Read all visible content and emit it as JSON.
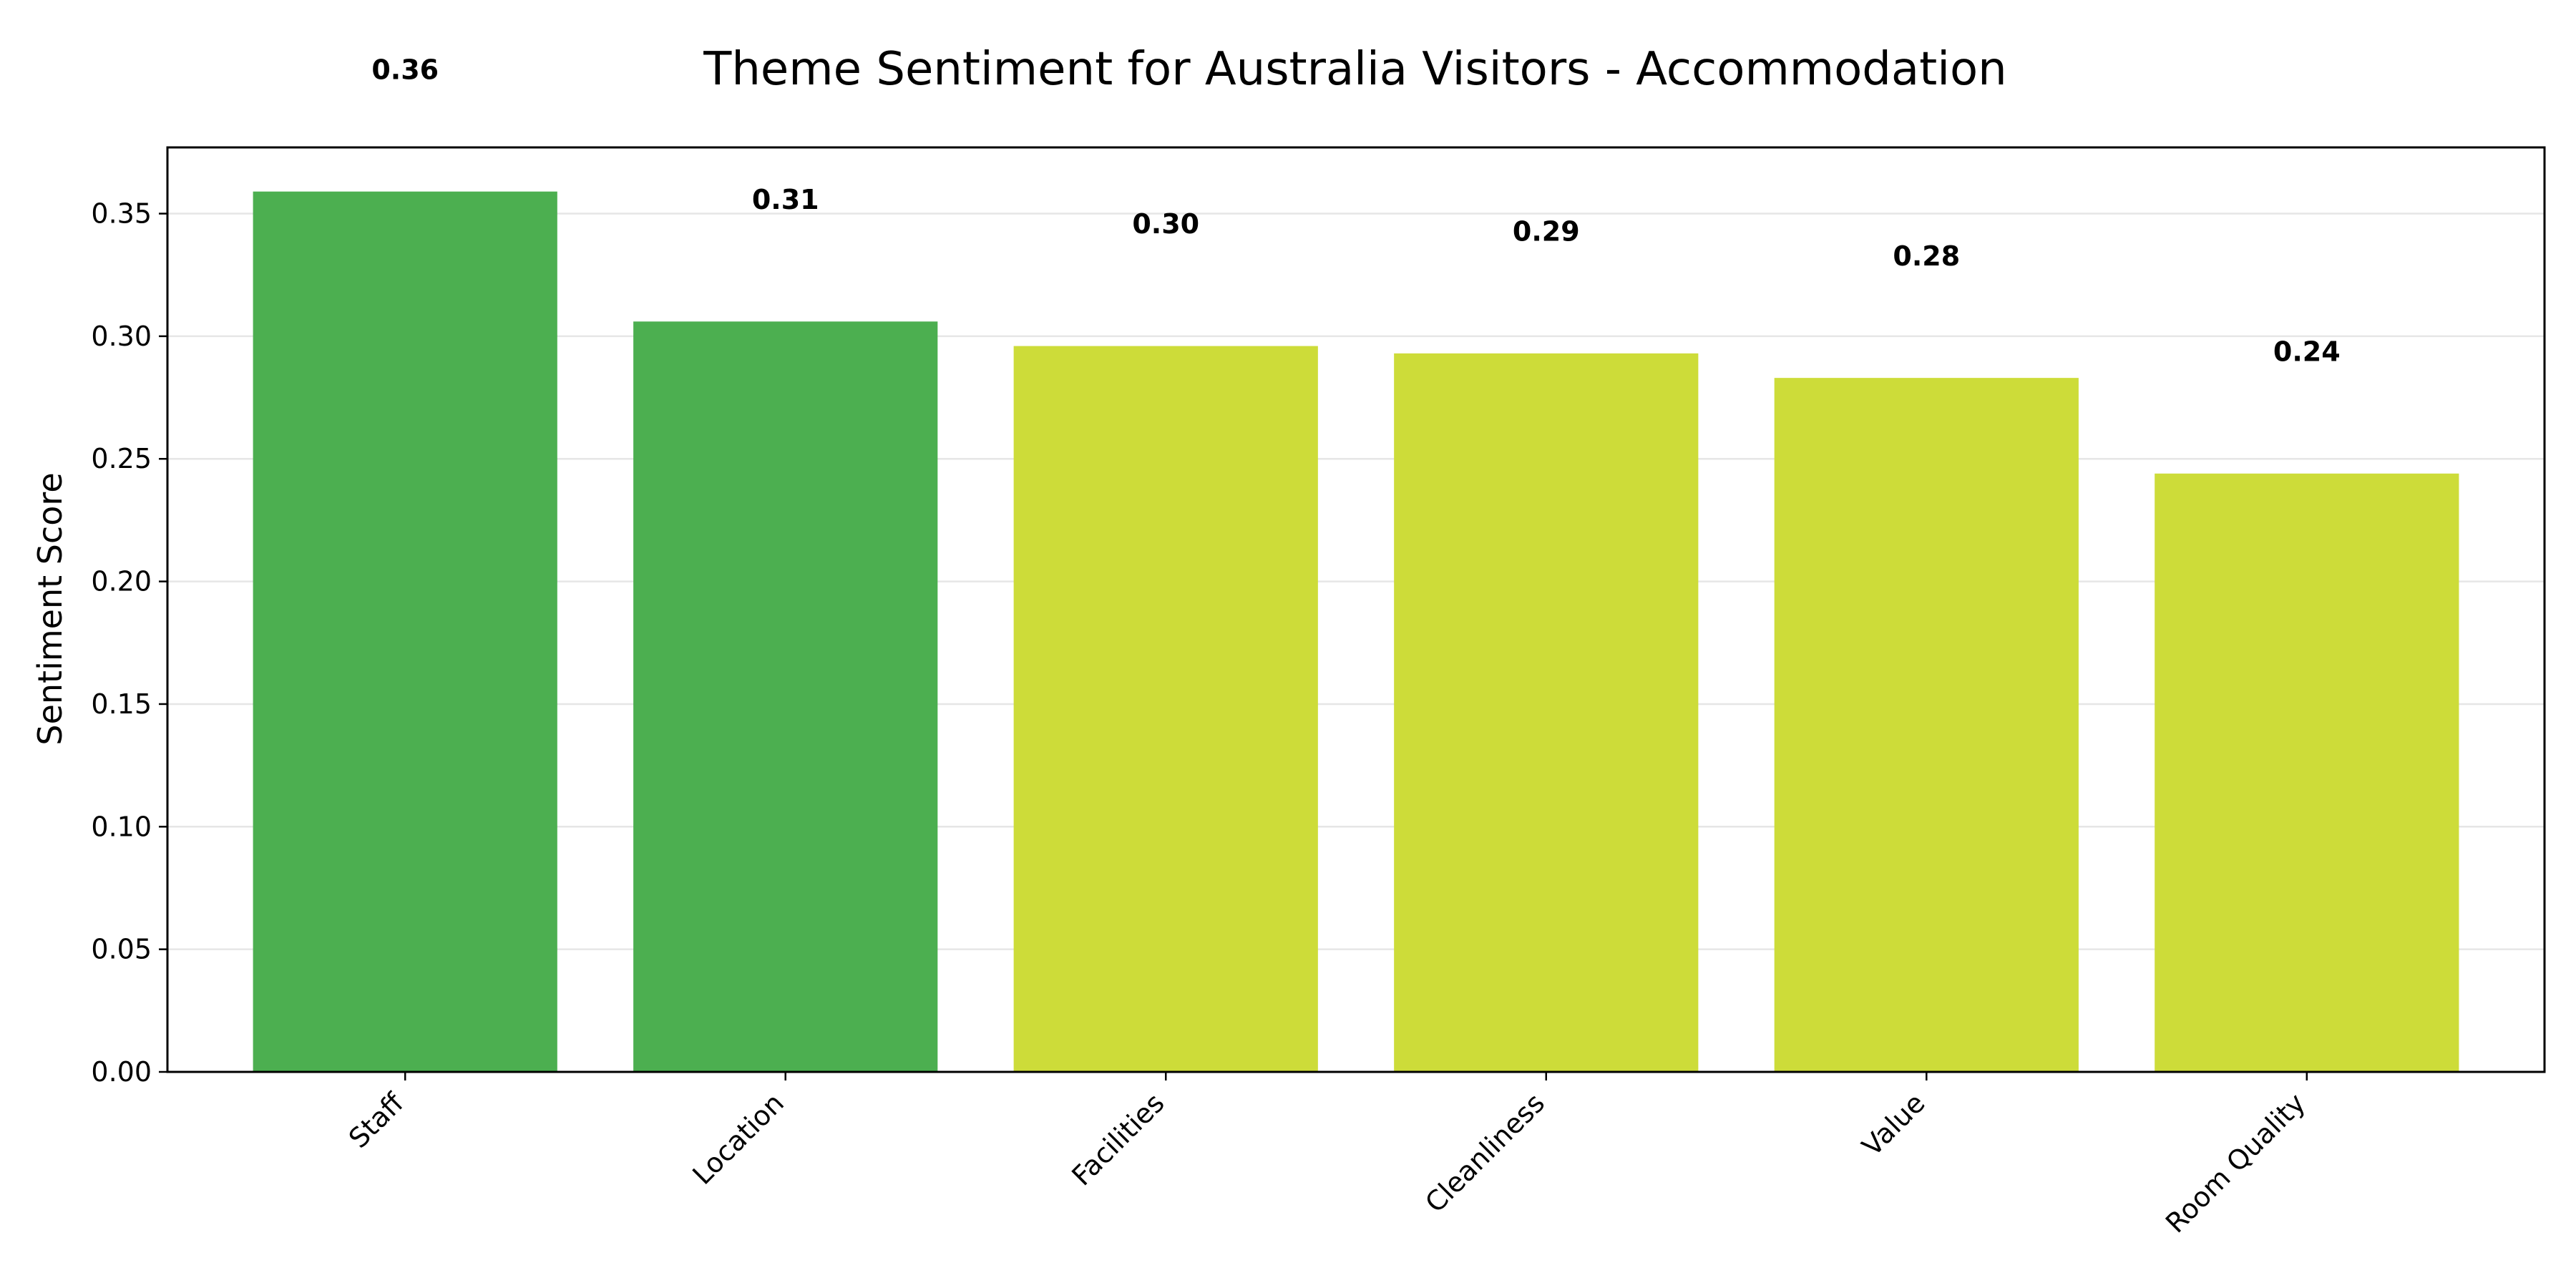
{
  "chart_data": {
    "type": "bar",
    "title": "Theme Sentiment for Australia Visitors - Accommodation",
    "xlabel": "",
    "ylabel": "Sentiment Score",
    "categories": [
      "Staff",
      "Location",
      "Facilities",
      "Cleanliness",
      "Value",
      "Room Quality"
    ],
    "values": [
      0.359,
      0.306,
      0.296,
      0.293,
      0.283,
      0.244
    ],
    "data_labels": [
      "0.36",
      "0.31",
      "0.30",
      "0.29",
      "0.28",
      "0.24"
    ],
    "bar_colors": [
      "#4caf50",
      "#4caf50",
      "#cddc39",
      "#cddc39",
      "#cddc39",
      "#cddc39"
    ],
    "ylim": [
      0,
      0.377
    ],
    "yticks": [
      0.0,
      0.05,
      0.1,
      0.15,
      0.2,
      0.25,
      0.3,
      0.35
    ],
    "ytick_labels": [
      "0.00",
      "0.05",
      "0.10",
      "0.15",
      "0.20",
      "0.25",
      "0.30",
      "0.35"
    ],
    "grid": "y",
    "legend": "none"
  }
}
